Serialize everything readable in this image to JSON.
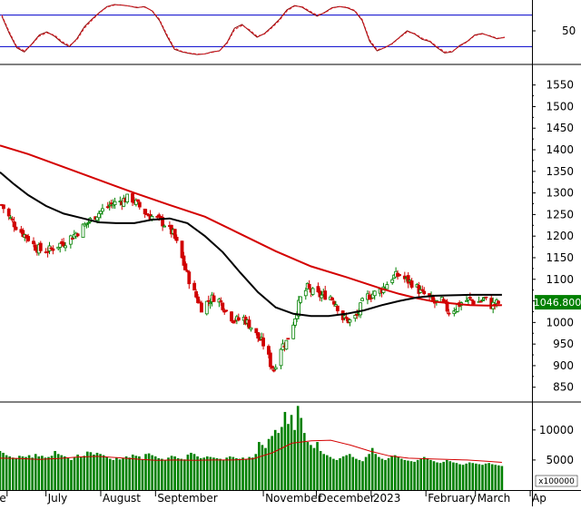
{
  "chart_data": [
    {
      "panel": "stochastic",
      "type": "line",
      "y_ticks": [
        50
      ],
      "reference_lines": [
        20,
        80
      ],
      "ylim": [
        0,
        100
      ],
      "grid": false,
      "series": [
        {
          "key": "k",
          "color": "#8b0000",
          "style": "solid",
          "values": [
            78,
            45,
            18,
            10,
            25,
            42,
            48,
            40,
            28,
            20,
            35,
            58,
            72,
            85,
            96,
            100,
            99,
            97,
            94,
            96,
            88,
            70,
            40,
            15,
            10,
            7,
            5,
            6,
            10,
            12,
            28,
            55,
            62,
            50,
            38,
            45,
            58,
            72,
            90,
            98,
            95,
            86,
            78,
            85,
            94,
            96,
            94,
            88,
            70,
            30,
            12,
            18,
            26,
            38,
            50,
            44,
            34,
            30,
            18,
            8,
            10,
            22,
            30,
            42,
            45,
            40,
            35,
            38
          ]
        },
        {
          "key": "d",
          "color": "#e0202a",
          "style": "dashed",
          "values": [
            80,
            48,
            20,
            12,
            24,
            40,
            46,
            42,
            30,
            22,
            33,
            55,
            70,
            84,
            95,
            99,
            99,
            97,
            95,
            95,
            89,
            72,
            43,
            17,
            11,
            8,
            6,
            6,
            9,
            12,
            26,
            52,
            60,
            52,
            40,
            44,
            56,
            70,
            88,
            97,
            96,
            88,
            80,
            84,
            93,
            96,
            95,
            89,
            72,
            33,
            14,
            18,
            25,
            37,
            48,
            45,
            36,
            31,
            20,
            10,
            11,
            21,
            29,
            41,
            44,
            41,
            36,
            37
          ]
        }
      ]
    },
    {
      "panel": "price",
      "type": "candlestick",
      "last_value": "1046.800",
      "y_ticks": [
        850,
        900,
        950,
        1000,
        1050,
        1100,
        1150,
        1200,
        1250,
        1300,
        1350,
        1400,
        1450,
        1500,
        1550
      ],
      "ylim": [
        820,
        1585
      ],
      "x_labels": [
        {
          "label": "e",
          "day": -22
        },
        {
          "label": "July",
          "day": 0
        },
        {
          "label": "August",
          "day": 31
        },
        {
          "label": "September",
          "day": 62
        },
        {
          "label": "November",
          "day": 123
        },
        {
          "label": "December",
          "day": 153
        },
        {
          "label": "2023",
          "day": 184
        },
        {
          "label": "February",
          "day": 215
        },
        {
          "label": "March",
          "day": 243
        },
        {
          "label": "Ap",
          "day": 274
        }
      ],
      "x_range_days": [
        -26,
        275
      ],
      "candle_colors": {
        "up": "#008000",
        "down": "#d00000"
      },
      "ma_long": {
        "color": "#d40000",
        "points": [
          [
            -26,
            1410
          ],
          [
            -10,
            1390
          ],
          [
            10,
            1360
          ],
          [
            30,
            1330
          ],
          [
            50,
            1300
          ],
          [
            70,
            1272
          ],
          [
            90,
            1245
          ],
          [
            110,
            1205
          ],
          [
            130,
            1165
          ],
          [
            150,
            1130
          ],
          [
            170,
            1105
          ],
          [
            190,
            1078
          ],
          [
            200,
            1066
          ],
          [
            210,
            1056
          ],
          [
            220,
            1048
          ],
          [
            230,
            1044
          ],
          [
            240,
            1040
          ],
          [
            250,
            1039
          ],
          [
            258,
            1040
          ]
        ]
      },
      "ma_short": {
        "color": "#000000",
        "points": [
          [
            -26,
            1348
          ],
          [
            -18,
            1320
          ],
          [
            -10,
            1295
          ],
          [
            0,
            1270
          ],
          [
            10,
            1252
          ],
          [
            20,
            1242
          ],
          [
            30,
            1232
          ],
          [
            40,
            1230
          ],
          [
            50,
            1230
          ],
          [
            60,
            1238
          ],
          [
            70,
            1241
          ],
          [
            80,
            1230
          ],
          [
            90,
            1200
          ],
          [
            100,
            1163
          ],
          [
            110,
            1115
          ],
          [
            120,
            1070
          ],
          [
            130,
            1035
          ],
          [
            140,
            1020
          ],
          [
            150,
            1015
          ],
          [
            160,
            1015
          ],
          [
            170,
            1020
          ],
          [
            180,
            1028
          ],
          [
            190,
            1040
          ],
          [
            200,
            1050
          ],
          [
            210,
            1058
          ],
          [
            220,
            1062
          ],
          [
            230,
            1063
          ],
          [
            240,
            1064
          ],
          [
            250,
            1064
          ],
          [
            258,
            1064
          ]
        ]
      },
      "close_path": [
        [
          -26,
          1280
        ],
        [
          -22,
          1250
        ],
        [
          -16,
          1218
        ],
        [
          -10,
          1195
        ],
        [
          -6,
          1175
        ],
        [
          -2,
          1165
        ],
        [
          2,
          1168
        ],
        [
          6,
          1178
        ],
        [
          10,
          1185
        ],
        [
          16,
          1203
        ],
        [
          22,
          1225
        ],
        [
          28,
          1248
        ],
        [
          32,
          1260
        ],
        [
          36,
          1272
        ],
        [
          40,
          1278
        ],
        [
          44,
          1284
        ],
        [
          48,
          1290
        ],
        [
          52,
          1272
        ],
        [
          56,
          1255
        ],
        [
          60,
          1245
        ],
        [
          64,
          1238
        ],
        [
          68,
          1225
        ],
        [
          72,
          1205
        ],
        [
          76,
          1160
        ],
        [
          80,
          1110
        ],
        [
          84,
          1068
        ],
        [
          88,
          1035
        ],
        [
          92,
          1050
        ],
        [
          96,
          1062
        ],
        [
          100,
          1040
        ],
        [
          104,
          1015
        ],
        [
          108,
          1005
        ],
        [
          112,
          1010
        ],
        [
          116,
          990
        ],
        [
          120,
          965
        ],
        [
          124,
          945
        ],
        [
          127,
          905
        ],
        [
          129,
          890
        ],
        [
          132,
          940
        ],
        [
          136,
          955
        ],
        [
          140,
          1000
        ],
        [
          144,
          1055
        ],
        [
          148,
          1080
        ],
        [
          152,
          1065
        ],
        [
          156,
          1062
        ],
        [
          160,
          1065
        ],
        [
          164,
          1045
        ],
        [
          168,
          1010
        ],
        [
          172,
          1003
        ],
        [
          176,
          1015
        ],
        [
          180,
          1055
        ],
        [
          184,
          1065
        ],
        [
          188,
          1070
        ],
        [
          192,
          1085
        ],
        [
          196,
          1105
        ],
        [
          200,
          1110
        ],
        [
          204,
          1098
        ],
        [
          208,
          1090
        ],
        [
          212,
          1070
        ],
        [
          216,
          1060
        ],
        [
          220,
          1045
        ],
        [
          224,
          1048
        ],
        [
          228,
          1025
        ],
        [
          232,
          1035
        ],
        [
          236,
          1050
        ],
        [
          240,
          1052
        ],
        [
          244,
          1046
        ],
        [
          248,
          1055
        ],
        [
          252,
          1040
        ],
        [
          256,
          1045
        ],
        [
          258,
          1046.8
        ]
      ]
    },
    {
      "panel": "volume",
      "type": "bar",
      "y_ticks": [
        5000,
        10000
      ],
      "ylim": [
        0,
        14200
      ],
      "unit_label": "x100000",
      "bar_color": "#008000",
      "ma_color": "#d40000",
      "values": [
        6500,
        6200,
        5800,
        5600,
        5400,
        5300,
        5700,
        5600,
        5500,
        5800,
        5400,
        6000,
        5600,
        5700,
        5400,
        5500,
        5700,
        6500,
        6000,
        5800,
        5600,
        5300,
        5000,
        5500,
        5900,
        5500,
        5700,
        6400,
        6300,
        5900,
        6200,
        6000,
        5800,
        5500,
        5200,
        5000,
        5400,
        5100,
        5300,
        5600,
        5400,
        5900,
        5700,
        5600,
        5100,
        6000,
        6100,
        5800,
        5600,
        5300,
        5200,
        5000,
        5400,
        5700,
        5600,
        5300,
        5200,
        5100,
        5900,
        6200,
        6000,
        5600,
        5300,
        5400,
        5600,
        5500,
        5400,
        5300,
        5200,
        5000,
        5400,
        5600,
        5500,
        5300,
        5200,
        5400,
        5100,
        5500,
        5400,
        6000,
        8000,
        7500,
        7000,
        8500,
        9000,
        10000,
        9500,
        10500,
        13000,
        11000,
        12500,
        10000,
        14000,
        12000,
        9500,
        8000,
        7500,
        7000,
        8000,
        6500,
        6000,
        5800,
        5500,
        5200,
        5000,
        5300,
        5600,
        5800,
        6000,
        5500,
        5200,
        5000,
        4800,
        5500,
        6000,
        7000,
        6000,
        5500,
        5200,
        5000,
        5300,
        5600,
        5800,
        5500,
        5200,
        5000,
        4900,
        4800,
        4700,
        5000,
        5200,
        5500,
        5300,
        5000,
        4800,
        4600,
        4500,
        4700,
        5000,
        4800,
        4600,
        4500,
        4300,
        4200,
        4400,
        4600,
        4500,
        4400,
        4300,
        4200,
        4400,
        4500,
        4300,
        4200,
        4100,
        4000
      ],
      "ma_points": [
        [
          0,
          5300
        ],
        [
          10,
          5250
        ],
        [
          20,
          5100
        ],
        [
          30,
          5250
        ],
        [
          40,
          5500
        ],
        [
          50,
          5600
        ],
        [
          60,
          5400
        ],
        [
          70,
          5150
        ],
        [
          80,
          4950
        ],
        [
          90,
          5000
        ],
        [
          100,
          4950
        ],
        [
          110,
          5000
        ],
        [
          120,
          5000
        ],
        [
          130,
          5200
        ],
        [
          140,
          6200
        ],
        [
          150,
          7800
        ],
        [
          160,
          8200
        ],
        [
          170,
          8300
        ],
        [
          180,
          7500
        ],
        [
          190,
          6500
        ],
        [
          200,
          5700
        ],
        [
          210,
          5300
        ],
        [
          220,
          5200
        ],
        [
          230,
          5100
        ],
        [
          240,
          5000
        ],
        [
          250,
          4800
        ],
        [
          258,
          4600
        ]
      ]
    }
  ]
}
